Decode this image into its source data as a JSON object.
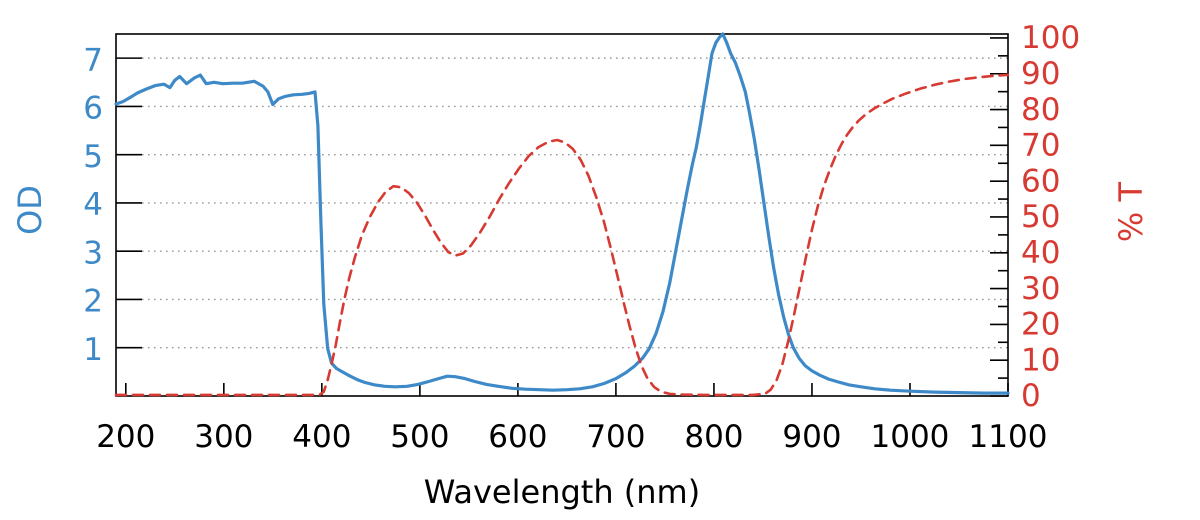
{
  "chart_data": {
    "type": "line",
    "title": "",
    "xlabel": "Wavelength (nm)",
    "ylabel_left": "OD",
    "ylabel_right": "% T",
    "xlim": [
      190,
      1100
    ],
    "ylim_left": [
      0,
      7.5
    ],
    "ylim_right": [
      0,
      101.1
    ],
    "grid": "horizontal dotted lines at each OD integer",
    "legend_position": "none",
    "x_ticks": [
      200,
      300,
      400,
      500,
      600,
      700,
      800,
      900,
      1000,
      1100
    ],
    "od_ticks": [
      1,
      2,
      3,
      4,
      5,
      6,
      7
    ],
    "t_ticks": [
      0,
      10,
      20,
      30,
      40,
      50,
      60,
      70,
      80,
      90,
      100
    ],
    "t_minor_tick_step": 5,
    "colors": {
      "od_curve": "#3e8ac8",
      "od_labels": "#3e8ac8",
      "t_curve": "#d63a32",
      "t_labels": "#d63a32",
      "grid": "#999999",
      "axis": "#000000",
      "background": "#ffffff"
    },
    "series": [
      {
        "name": "OD",
        "axis": "left",
        "style": "solid",
        "color": "#3e8ac8",
        "points": [
          [
            190,
            6.05
          ],
          [
            197,
            6.1
          ],
          [
            204,
            6.18
          ],
          [
            212,
            6.28
          ],
          [
            221,
            6.36
          ],
          [
            230,
            6.43
          ],
          [
            239,
            6.46
          ],
          [
            245,
            6.39
          ],
          [
            250,
            6.54
          ],
          [
            255,
            6.62
          ],
          [
            262,
            6.47
          ],
          [
            270,
            6.59
          ],
          [
            276,
            6.65
          ],
          [
            282,
            6.47
          ],
          [
            290,
            6.5
          ],
          [
            299,
            6.47
          ],
          [
            309,
            6.48
          ],
          [
            319,
            6.48
          ],
          [
            331,
            6.52
          ],
          [
            340,
            6.42
          ],
          [
            345,
            6.3
          ],
          [
            350,
            6.04
          ],
          [
            356,
            6.16
          ],
          [
            363,
            6.21
          ],
          [
            371,
            6.24
          ],
          [
            380,
            6.25
          ],
          [
            387,
            6.27
          ],
          [
            393,
            6.3
          ],
          [
            396,
            5.6
          ],
          [
            399,
            3.6
          ],
          [
            402,
            1.9
          ],
          [
            406,
            0.98
          ],
          [
            410,
            0.68
          ],
          [
            415,
            0.57
          ],
          [
            421,
            0.5
          ],
          [
            428,
            0.42
          ],
          [
            436,
            0.34
          ],
          [
            444,
            0.28
          ],
          [
            454,
            0.23
          ],
          [
            464,
            0.2
          ],
          [
            475,
            0.19
          ],
          [
            487,
            0.2
          ],
          [
            498,
            0.24
          ],
          [
            509,
            0.3
          ],
          [
            519,
            0.36
          ],
          [
            528,
            0.41
          ],
          [
            536,
            0.4
          ],
          [
            546,
            0.36
          ],
          [
            556,
            0.3
          ],
          [
            568,
            0.24
          ],
          [
            580,
            0.2
          ],
          [
            594,
            0.16
          ],
          [
            608,
            0.14
          ],
          [
            622,
            0.13
          ],
          [
            636,
            0.12
          ],
          [
            650,
            0.13
          ],
          [
            663,
            0.15
          ],
          [
            676,
            0.19
          ],
          [
            688,
            0.26
          ],
          [
            700,
            0.36
          ],
          [
            710,
            0.48
          ],
          [
            719,
            0.62
          ],
          [
            727,
            0.78
          ],
          [
            734,
            0.98
          ],
          [
            741,
            1.3
          ],
          [
            748,
            1.75
          ],
          [
            755,
            2.35
          ],
          [
            761,
            3.0
          ],
          [
            767,
            3.65
          ],
          [
            773,
            4.3
          ],
          [
            778,
            4.8
          ],
          [
            782,
            5.15
          ],
          [
            786,
            5.6
          ],
          [
            790,
            6.1
          ],
          [
            794,
            6.6
          ],
          [
            798,
            7.1
          ],
          [
            802,
            7.32
          ],
          [
            806,
            7.44
          ],
          [
            809,
            7.5
          ],
          [
            813,
            7.32
          ],
          [
            817,
            7.1
          ],
          [
            822,
            6.9
          ],
          [
            827,
            6.62
          ],
          [
            832,
            6.3
          ],
          [
            836,
            5.9
          ],
          [
            841,
            5.35
          ],
          [
            846,
            4.7
          ],
          [
            851,
            4.0
          ],
          [
            856,
            3.3
          ],
          [
            861,
            2.65
          ],
          [
            866,
            2.1
          ],
          [
            871,
            1.65
          ],
          [
            876,
            1.28
          ],
          [
            881,
            1.0
          ],
          [
            887,
            0.78
          ],
          [
            893,
            0.63
          ],
          [
            900,
            0.52
          ],
          [
            908,
            0.43
          ],
          [
            917,
            0.35
          ],
          [
            927,
            0.29
          ],
          [
            938,
            0.23
          ],
          [
            950,
            0.19
          ],
          [
            964,
            0.15
          ],
          [
            980,
            0.12
          ],
          [
            1000,
            0.1
          ],
          [
            1025,
            0.08
          ],
          [
            1050,
            0.07
          ],
          [
            1075,
            0.06
          ],
          [
            1100,
            0.06
          ]
        ]
      },
      {
        "name": "% T",
        "axis": "right",
        "style": "dashed",
        "color": "#d63a32",
        "points": [
          [
            190,
            0.3
          ],
          [
            240,
            0.3
          ],
          [
            290,
            0.3
          ],
          [
            340,
            0.3
          ],
          [
            370,
            0.3
          ],
          [
            390,
            0.3
          ],
          [
            398,
            0.4
          ],
          [
            402,
            1.2
          ],
          [
            406,
            4.5
          ],
          [
            410,
            9
          ],
          [
            414,
            14
          ],
          [
            418,
            20
          ],
          [
            423,
            27
          ],
          [
            428,
            33
          ],
          [
            434,
            39
          ],
          [
            441,
            45
          ],
          [
            449,
            50
          ],
          [
            457,
            54
          ],
          [
            465,
            57
          ],
          [
            473,
            58.6
          ],
          [
            481,
            58.3
          ],
          [
            489,
            56.6
          ],
          [
            497,
            54
          ],
          [
            505,
            50.5
          ],
          [
            513,
            46.6
          ],
          [
            521,
            43
          ],
          [
            529,
            40.2
          ],
          [
            536,
            39.2
          ],
          [
            544,
            39.8
          ],
          [
            552,
            42
          ],
          [
            561,
            45.5
          ],
          [
            571,
            50
          ],
          [
            581,
            55
          ],
          [
            591,
            59.5
          ],
          [
            601,
            63.5
          ],
          [
            611,
            67
          ],
          [
            621,
            69.5
          ],
          [
            631,
            71
          ],
          [
            640,
            71.5
          ],
          [
            648,
            70.8
          ],
          [
            656,
            69
          ],
          [
            664,
            66
          ],
          [
            672,
            61.5
          ],
          [
            680,
            55.5
          ],
          [
            688,
            48.5
          ],
          [
            695,
            41
          ],
          [
            702,
            33
          ],
          [
            708,
            26
          ],
          [
            714,
            19.5
          ],
          [
            720,
            13.5
          ],
          [
            726,
            8.5
          ],
          [
            732,
            5
          ],
          [
            739,
            2.5
          ],
          [
            746,
            1.2
          ],
          [
            755,
            0.6
          ],
          [
            768,
            0.4
          ],
          [
            790,
            0.3
          ],
          [
            815,
            0.3
          ],
          [
            840,
            0.3
          ],
          [
            852,
            0.6
          ],
          [
            858,
            1.8
          ],
          [
            864,
            4.5
          ],
          [
            870,
            9
          ],
          [
            876,
            15.5
          ],
          [
            882,
            23
          ],
          [
            888,
            31
          ],
          [
            894,
            39
          ],
          [
            900,
            46.5
          ],
          [
            906,
            53
          ],
          [
            912,
            58.5
          ],
          [
            918,
            63
          ],
          [
            924,
            67
          ],
          [
            930,
            70.3
          ],
          [
            936,
            73
          ],
          [
            942,
            75.2
          ],
          [
            948,
            77
          ],
          [
            955,
            78.7
          ],
          [
            963,
            80.2
          ],
          [
            972,
            81.6
          ],
          [
            982,
            83
          ],
          [
            995,
            84.4
          ],
          [
            1010,
            85.8
          ],
          [
            1025,
            86.9
          ],
          [
            1040,
            87.8
          ],
          [
            1055,
            88.5
          ],
          [
            1070,
            89
          ],
          [
            1085,
            89.4
          ],
          [
            1100,
            89.7
          ]
        ]
      }
    ]
  }
}
